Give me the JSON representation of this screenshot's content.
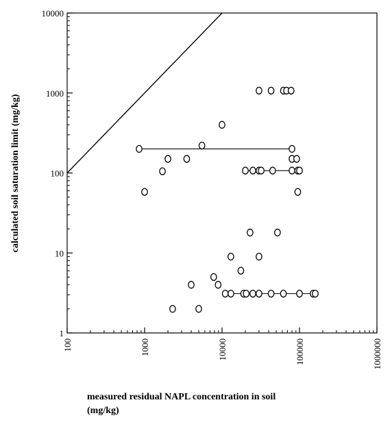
{
  "chart_data": {
    "type": "scatter",
    "title": "",
    "xlabel_line1": "measured residual NAPL concentration in soil",
    "xlabel_line2": "(mg/kg)",
    "ylabel": "calculated soil saturation limit (mg/kg)",
    "xscale": "log",
    "yscale": "log",
    "xlim": [
      100,
      1000000
    ],
    "ylim": [
      1,
      10000
    ],
    "x_ticks": [
      100,
      1000,
      10000,
      100000,
      1000000
    ],
    "x_tick_labels": [
      "100",
      "1000",
      "10000",
      "100000",
      "1000000"
    ],
    "y_ticks": [
      1,
      10,
      100,
      1000,
      10000
    ],
    "y_tick_labels": [
      "1",
      "10",
      "100",
      "1000",
      "10000"
    ],
    "grid": false,
    "reference_line": {
      "description": "1:1 line",
      "points": [
        [
          100,
          100
        ],
        [
          10000,
          10000
        ]
      ]
    },
    "ranges": [
      {
        "y": 200,
        "x": [
          850,
          80000
        ]
      },
      {
        "y": 107,
        "x": [
          20000,
          100000
        ]
      },
      {
        "y": 3.1,
        "x": [
          11000,
          160000
        ]
      }
    ],
    "points": [
      [
        30000,
        1070
      ],
      [
        43000,
        1070
      ],
      [
        62000,
        1070
      ],
      [
        68000,
        1070
      ],
      [
        78000,
        1070
      ],
      [
        10000,
        400
      ],
      [
        5500,
        220
      ],
      [
        850,
        200
      ],
      [
        80000,
        200
      ],
      [
        2000,
        150
      ],
      [
        3500,
        150
      ],
      [
        80000,
        150
      ],
      [
        92000,
        150
      ],
      [
        1700,
        105
      ],
      [
        20000,
        107
      ],
      [
        25000,
        107
      ],
      [
        30000,
        107
      ],
      [
        32000,
        107
      ],
      [
        45000,
        107
      ],
      [
        80000,
        107
      ],
      [
        95000,
        107
      ],
      [
        100000,
        107
      ],
      [
        1000,
        58
      ],
      [
        95000,
        58
      ],
      [
        23000,
        18
      ],
      [
        52000,
        18
      ],
      [
        13000,
        9
      ],
      [
        30000,
        9
      ],
      [
        17500,
        6
      ],
      [
        7800,
        5
      ],
      [
        4000,
        4
      ],
      [
        8900,
        4
      ],
      [
        11000,
        3.1
      ],
      [
        13000,
        3.1
      ],
      [
        19000,
        3.1
      ],
      [
        20500,
        3.1
      ],
      [
        25000,
        3.1
      ],
      [
        30000,
        3.1
      ],
      [
        43000,
        3.1
      ],
      [
        62000,
        3.1
      ],
      [
        100000,
        3.1
      ],
      [
        150000,
        3.1
      ],
      [
        160000,
        3.1
      ],
      [
        2300,
        2
      ],
      [
        5000,
        2
      ]
    ]
  }
}
